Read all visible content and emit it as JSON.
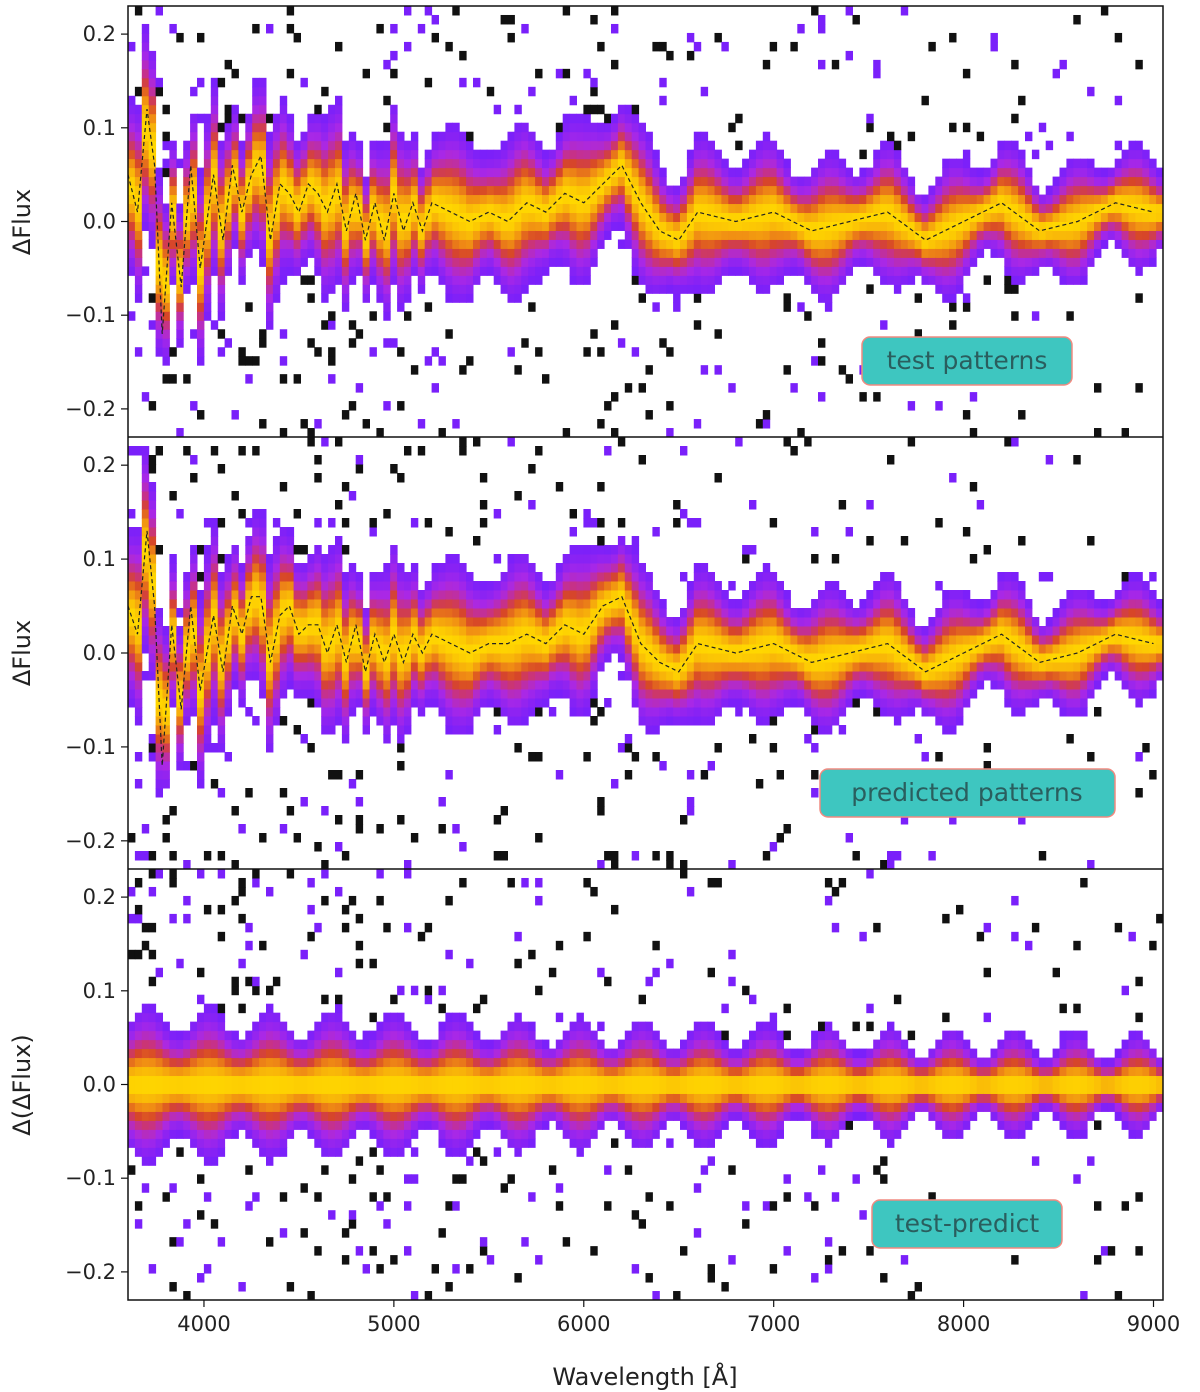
{
  "chart_data": [
    {
      "type": "heatmap",
      "ylabel": "ΔFlux",
      "annotation": "test patterns",
      "xlim": [
        3600,
        9050
      ],
      "ylim": [
        -0.23,
        0.23
      ],
      "yticks": [
        -0.2,
        -0.1,
        0.0,
        0.1,
        0.2
      ],
      "ytick_labels": [
        "−0.2",
        "−0.1",
        "0.0",
        "0.1",
        "0.2"
      ],
      "median_line": {
        "style": "dashed",
        "x": [
          3600,
          3650,
          3700,
          3740,
          3780,
          3830,
          3880,
          3930,
          3980,
          4050,
          4100,
          4150,
          4200,
          4250,
          4300,
          4350,
          4400,
          4450,
          4500,
          4550,
          4600,
          4650,
          4700,
          4750,
          4800,
          4850,
          4900,
          4950,
          5000,
          5050,
          5100,
          5150,
          5200,
          5300,
          5400,
          5500,
          5600,
          5700,
          5800,
          5900,
          6000,
          6100,
          6200,
          6300,
          6400,
          6500,
          6600,
          6800,
          7000,
          7200,
          7400,
          7600,
          7800,
          8000,
          8200,
          8400,
          8600,
          8800,
          9000
        ],
        "y": [
          0.05,
          0.01,
          0.12,
          0.06,
          -0.12,
          0.02,
          -0.07,
          0.06,
          -0.05,
          0.05,
          -0.02,
          0.06,
          0.01,
          0.05,
          0.07,
          -0.02,
          0.04,
          0.03,
          0.01,
          0.04,
          0.03,
          0.01,
          0.04,
          -0.01,
          0.03,
          -0.02,
          0.02,
          -0.02,
          0.03,
          -0.01,
          0.02,
          -0.01,
          0.02,
          0.01,
          0.0,
          0.01,
          0.0,
          0.02,
          0.01,
          0.03,
          0.02,
          0.04,
          0.06,
          0.02,
          -0.01,
          -0.02,
          0.01,
          0.0,
          0.01,
          -0.01,
          0.0,
          0.01,
          -0.02,
          0.0,
          0.02,
          -0.01,
          0.0,
          0.02,
          0.01
        ]
      }
    },
    {
      "type": "heatmap",
      "ylabel": "ΔFlux",
      "annotation": "predicted patterns",
      "xlim": [
        3600,
        9050
      ],
      "ylim": [
        -0.23,
        0.23
      ],
      "yticks": [
        -0.2,
        -0.1,
        0.0,
        0.1,
        0.2
      ],
      "ytick_labels": [
        "−0.2",
        "−0.1",
        "0.0",
        "0.1",
        "0.2"
      ],
      "median_line": {
        "style": "dashed",
        "x": [
          3600,
          3650,
          3700,
          3740,
          3780,
          3830,
          3880,
          3930,
          3980,
          4050,
          4100,
          4150,
          4200,
          4250,
          4300,
          4350,
          4400,
          4450,
          4500,
          4550,
          4600,
          4650,
          4700,
          4750,
          4800,
          4850,
          4900,
          4950,
          5000,
          5050,
          5100,
          5150,
          5200,
          5300,
          5400,
          5500,
          5600,
          5700,
          5800,
          5900,
          6000,
          6100,
          6200,
          6300,
          6400,
          6500,
          6600,
          6800,
          7000,
          7200,
          7400,
          7600,
          7800,
          8000,
          8200,
          8400,
          8600,
          8800,
          9000
        ],
        "y": [
          0.05,
          0.02,
          0.13,
          0.05,
          -0.12,
          0.03,
          -0.06,
          0.05,
          -0.04,
          0.04,
          -0.02,
          0.05,
          0.02,
          0.06,
          0.06,
          -0.01,
          0.04,
          0.05,
          0.02,
          0.03,
          0.03,
          0.0,
          0.03,
          -0.01,
          0.03,
          -0.02,
          0.02,
          -0.01,
          0.02,
          -0.01,
          0.02,
          0.0,
          0.02,
          0.01,
          0.0,
          0.01,
          0.01,
          0.02,
          0.01,
          0.03,
          0.02,
          0.05,
          0.06,
          0.01,
          -0.01,
          -0.02,
          0.01,
          0.0,
          0.01,
          -0.01,
          0.0,
          0.01,
          -0.02,
          0.0,
          0.02,
          -0.01,
          0.0,
          0.02,
          0.01
        ]
      }
    },
    {
      "type": "heatmap",
      "ylabel": "Δ(ΔFlux)",
      "annotation": "test-predict",
      "xlabel": "Wavelength [Å]",
      "xlim": [
        3600,
        9050
      ],
      "ylim": [
        -0.23,
        0.23
      ],
      "xticks": [
        4000,
        5000,
        6000,
        7000,
        8000,
        9000
      ],
      "xtick_labels": [
        "4000",
        "5000",
        "6000",
        "7000",
        "8000",
        "9000"
      ],
      "yticks": [
        -0.2,
        -0.1,
        0.0,
        0.1,
        0.2
      ],
      "ytick_labels": [
        "−0.2",
        "−0.1",
        "0.0",
        "0.1",
        "0.2"
      ]
    }
  ]
}
